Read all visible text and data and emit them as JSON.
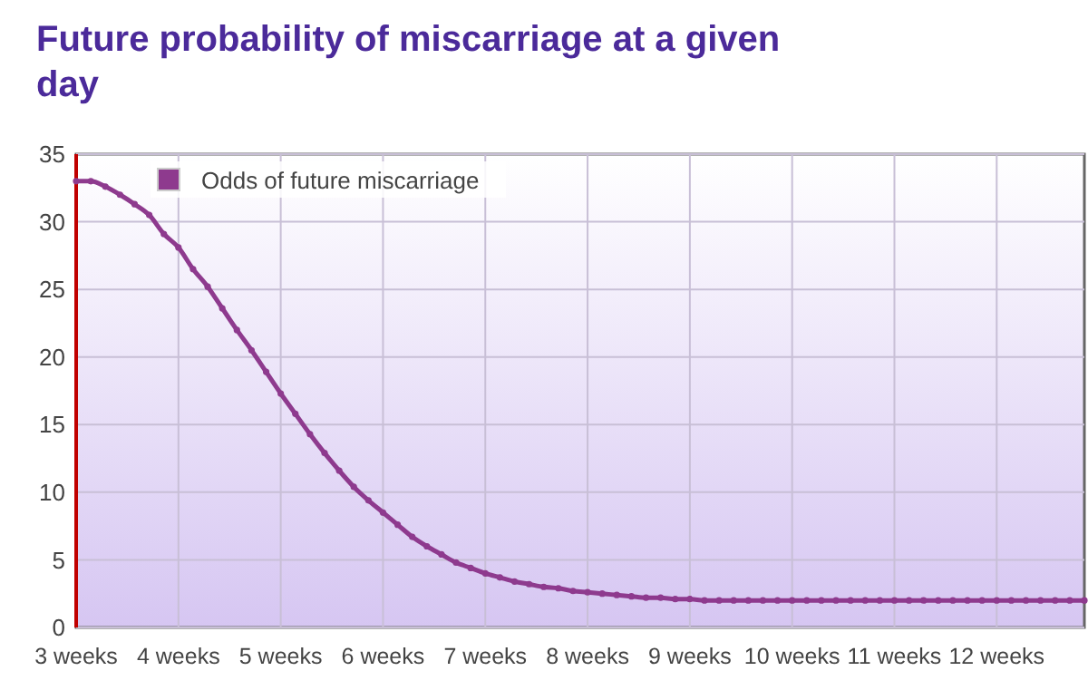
{
  "chart_data": {
    "type": "line",
    "title": "Future probability of miscarriage at a given day",
    "categories": [
      "3 weeks",
      null,
      null,
      null,
      null,
      null,
      null,
      "4 weeks",
      null,
      null,
      null,
      null,
      null,
      null,
      "5 weeks",
      null,
      null,
      null,
      null,
      null,
      null,
      "6 weeks",
      null,
      null,
      null,
      null,
      null,
      null,
      "7 weeks",
      null,
      null,
      null,
      null,
      null,
      null,
      "8 weeks",
      null,
      null,
      null,
      null,
      null,
      null,
      "9 weeks",
      null,
      null,
      null,
      null,
      null,
      null,
      "10 weeks",
      null,
      null,
      null,
      null,
      null,
      null,
      "11 weeks",
      null,
      null,
      null,
      null,
      null,
      null,
      "12 weeks",
      null,
      null,
      null,
      null,
      null,
      null
    ],
    "series": [
      {
        "name": "Odds of future miscarriage",
        "color": "#8e3a8e",
        "values": [
          33,
          33,
          32.6,
          32,
          31.3,
          30.5,
          29.1,
          28.1,
          26.5,
          25.2,
          23.6,
          22,
          20.5,
          18.9,
          17.3,
          15.8,
          14.3,
          12.9,
          11.6,
          10.4,
          9.4,
          8.5,
          7.6,
          6.7,
          6,
          5.4,
          4.8,
          4.4,
          4,
          3.7,
          3.4,
          3.2,
          3,
          2.9,
          2.7,
          2.6,
          2.5,
          2.4,
          2.3,
          2.2,
          2.2,
          2.1,
          2.1,
          2,
          2,
          2,
          2,
          2,
          2,
          2,
          2,
          2,
          2,
          2,
          2,
          2,
          2,
          2,
          2,
          2,
          2,
          2,
          2,
          2,
          2,
          2,
          2,
          2,
          2,
          2
        ]
      }
    ],
    "ylim": [
      0,
      35
    ],
    "yticks": [
      0,
      5,
      10,
      15,
      20,
      25,
      30,
      35
    ],
    "grid": true,
    "legend": "top left",
    "marker": "circle",
    "line_style": "solid"
  }
}
